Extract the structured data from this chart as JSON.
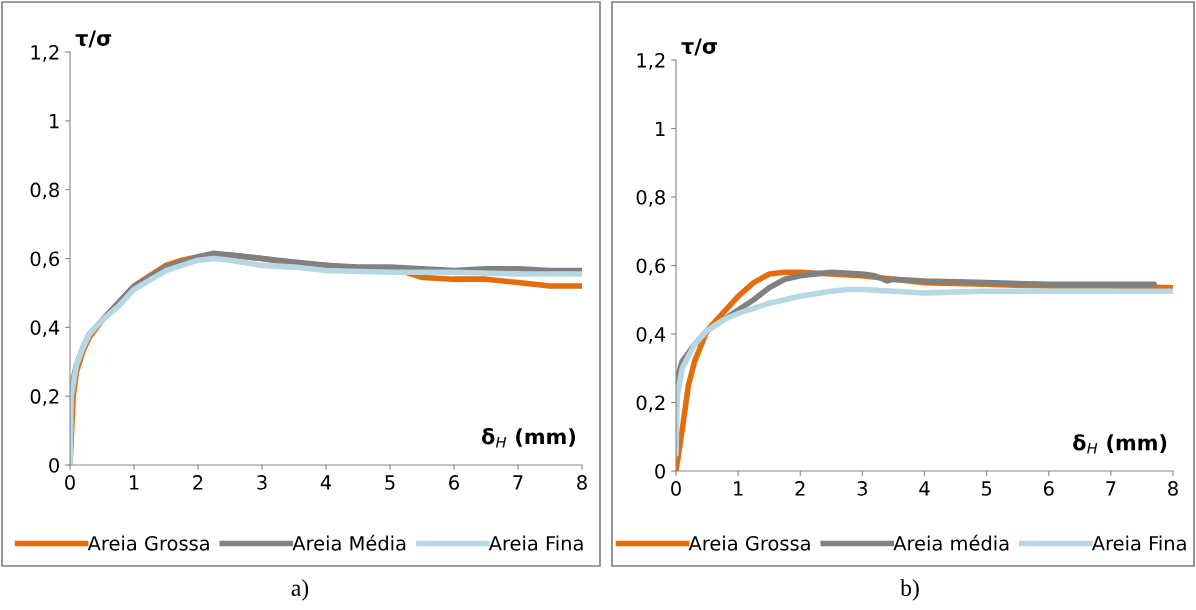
{
  "chart_data": [
    {
      "type": "line",
      "ylabel": "τ/σ",
      "xlabel": "δ$_{H}$ (mm)",
      "xlim": [
        0,
        8
      ],
      "xticks": [
        0,
        1,
        2,
        3,
        4,
        5,
        6,
        7,
        8
      ],
      "ylim": [
        0,
        1.2
      ],
      "yticks": [
        0,
        {
          "value": 0.2,
          "label": "0,2"
        },
        {
          "value": 0.4,
          "label": "0,4"
        },
        {
          "value": 0.6,
          "label": "0,6"
        },
        {
          "value": 0.8,
          "label": "0,8"
        },
        1,
        {
          "value": 1.2,
          "label": "1,2"
        }
      ],
      "grid": false,
      "legend": "bottom",
      "annotations": [
        "a)"
      ],
      "series": [
        {
          "name": "Areia Grossa",
          "color": "#e46c0a",
          "x": [
            0,
            0.05,
            0.1,
            0.2,
            0.3,
            0.5,
            0.75,
            1,
            1.25,
            1.5,
            1.75,
            2,
            2.25,
            2.5,
            3,
            3.5,
            4,
            4.5,
            5,
            5.25,
            5.5,
            6,
            6.5,
            7,
            7.5,
            8
          ],
          "values": [
            0,
            0.2,
            0.27,
            0.33,
            0.37,
            0.42,
            0.47,
            0.52,
            0.55,
            0.58,
            0.595,
            0.605,
            0.61,
            0.61,
            0.6,
            0.585,
            0.58,
            0.57,
            0.565,
            0.56,
            0.545,
            0.54,
            0.54,
            0.53,
            0.52,
            0.52
          ]
        },
        {
          "name": "Areia Média",
          "color": "#808080",
          "x": [
            0,
            0.05,
            0.1,
            0.2,
            0.3,
            0.5,
            0.75,
            1,
            1.5,
            2,
            2.25,
            2.5,
            3,
            3.5,
            4,
            4.5,
            5,
            5.5,
            6,
            6.5,
            7,
            7.5,
            8
          ],
          "values": [
            0.15,
            0.25,
            0.29,
            0.34,
            0.38,
            0.42,
            0.47,
            0.52,
            0.575,
            0.605,
            0.615,
            0.61,
            0.6,
            0.59,
            0.58,
            0.575,
            0.575,
            0.57,
            0.565,
            0.57,
            0.57,
            0.565,
            0.565
          ]
        },
        {
          "name": "Areia Fina",
          "color": "#b7d7e4",
          "x": [
            0,
            0.02,
            0.1,
            0.2,
            0.3,
            0.5,
            0.75,
            1,
            1.5,
            2,
            2.25,
            2.5,
            3,
            3.5,
            4,
            5,
            6,
            7,
            8
          ],
          "values": [
            0,
            0.2,
            0.29,
            0.34,
            0.38,
            0.42,
            0.46,
            0.51,
            0.565,
            0.595,
            0.6,
            0.595,
            0.58,
            0.575,
            0.565,
            0.56,
            0.56,
            0.555,
            0.555
          ]
        }
      ]
    },
    {
      "type": "line",
      "ylabel": "τ/σ",
      "xlabel": "δ$_{H}$ (mm)",
      "xlim": [
        0,
        8
      ],
      "xticks": [
        0,
        1,
        2,
        3,
        4,
        5,
        6,
        7,
        8
      ],
      "ylim": [
        0,
        1.2
      ],
      "yticks": [
        0,
        {
          "value": 0.2,
          "label": "0,2"
        },
        {
          "value": 0.4,
          "label": "0,4"
        },
        {
          "value": 0.6,
          "label": "0,6"
        },
        {
          "value": 0.8,
          "label": "0,8"
        },
        1,
        {
          "value": 1.2,
          "label": "1,2"
        }
      ],
      "grid": false,
      "legend": "bottom",
      "annotations": [
        "b)"
      ],
      "series": [
        {
          "name": "Areia Grossa",
          "color": "#e46c0a",
          "x": [
            0,
            0.1,
            0.2,
            0.3,
            0.5,
            0.75,
            1,
            1.25,
            1.5,
            1.75,
            2,
            2.5,
            3,
            3.5,
            4,
            5,
            6,
            7,
            8
          ],
          "values": [
            0,
            0.12,
            0.25,
            0.32,
            0.41,
            0.46,
            0.51,
            0.55,
            0.575,
            0.58,
            0.58,
            0.575,
            0.57,
            0.56,
            0.55,
            0.545,
            0.54,
            0.54,
            0.535
          ]
        },
        {
          "name": "Areia média",
          "color": "#808080",
          "x": [
            0,
            0.1,
            0.3,
            0.5,
            0.75,
            1,
            1.25,
            1.5,
            1.75,
            2,
            2.5,
            3,
            3.2,
            3.4,
            3.5,
            4,
            5,
            6,
            7,
            7.7
          ],
          "values": [
            0.26,
            0.32,
            0.37,
            0.41,
            0.44,
            0.47,
            0.5,
            0.535,
            0.56,
            0.57,
            0.58,
            0.575,
            0.57,
            0.555,
            0.56,
            0.555,
            0.55,
            0.545,
            0.545,
            0.545
          ]
        },
        {
          "name": "Areia Fina",
          "color": "#b7d7e4",
          "x": [
            0,
            0.02,
            0.1,
            0.3,
            0.5,
            0.75,
            1,
            1.5,
            2,
            2.5,
            2.75,
            3,
            3.5,
            4,
            5,
            6,
            7,
            8
          ],
          "values": [
            0.05,
            0.22,
            0.3,
            0.37,
            0.41,
            0.44,
            0.46,
            0.49,
            0.51,
            0.525,
            0.53,
            0.53,
            0.525,
            0.52,
            0.525,
            0.525,
            0.525,
            0.525
          ]
        }
      ]
    }
  ]
}
